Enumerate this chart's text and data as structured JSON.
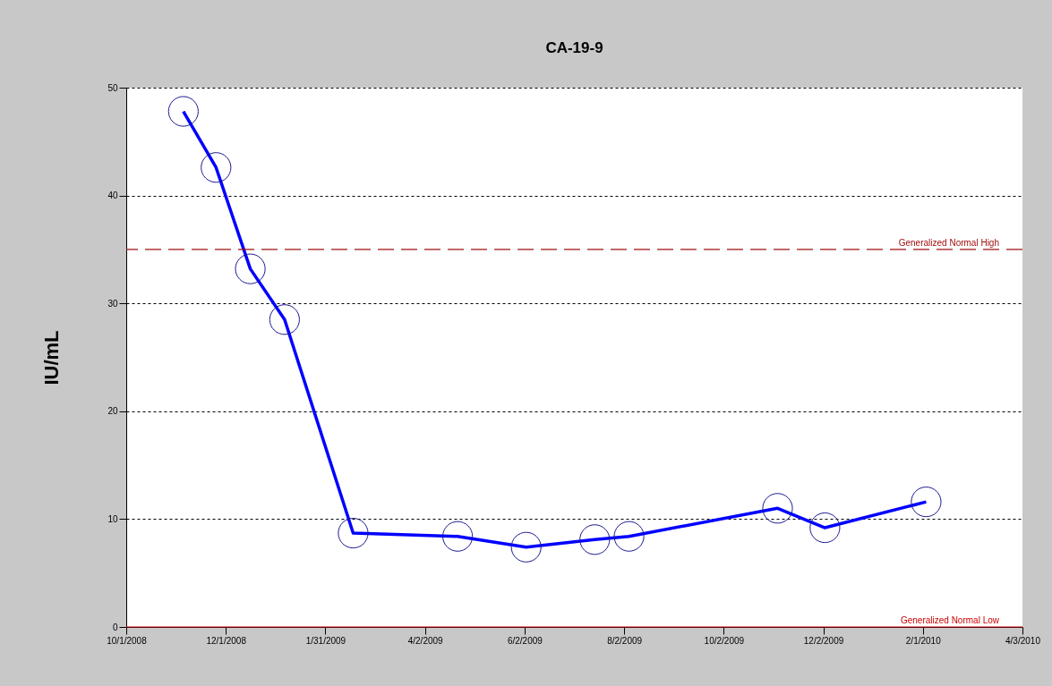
{
  "chart_data": {
    "type": "line",
    "title": "CA-19-9",
    "ylabel": "IU/mL",
    "x": [
      "2008-11-05",
      "2008-11-25",
      "2008-12-16",
      "2009-01-06",
      "2009-02-17",
      "2009-04-22",
      "2009-06-03",
      "2009-07-15",
      "2009-08-05",
      "2009-11-04",
      "2009-12-03",
      "2010-02-03"
    ],
    "series": [
      {
        "color": "#0000ff",
        "values": [
          47.8,
          42.6,
          33.2,
          28.5,
          8.7,
          8.4,
          7.4,
          8.1,
          8.4,
          11.0,
          9.2,
          11.6
        ]
      }
    ],
    "marker": "circle",
    "line_style": "solid",
    "grid": "y",
    "xlim": [
      "2008-10-01",
      "2010-04-03"
    ],
    "xticks": [
      {
        "value": "2008-10-01",
        "label": "10/1/2008"
      },
      {
        "value": "2008-12-01",
        "label": "12/1/2008"
      },
      {
        "value": "2009-01-31",
        "label": "1/31/2009"
      },
      {
        "value": "2009-04-02",
        "label": "4/2/2009"
      },
      {
        "value": "2009-06-02",
        "label": "6/2/2009"
      },
      {
        "value": "2009-08-02",
        "label": "8/2/2009"
      },
      {
        "value": "2009-10-02",
        "label": "10/2/2009"
      },
      {
        "value": "2009-12-02",
        "label": "12/2/2009"
      },
      {
        "value": "2010-02-01",
        "label": "2/1/2010"
      },
      {
        "value": "2010-04-03",
        "label": "4/3/2010"
      }
    ],
    "ylim": [
      0,
      50
    ],
    "yticks": [
      0,
      10,
      20,
      30,
      40,
      50
    ],
    "ref_lines": [
      {
        "axis": "y",
        "value": 35,
        "label": "Generalized Normal High",
        "color": "#a01010",
        "line_style": "dashed"
      },
      {
        "axis": "y",
        "value": 0,
        "label": "Generalized Normal Low",
        "color": "#cc0000",
        "line_style": "solid"
      }
    ]
  }
}
